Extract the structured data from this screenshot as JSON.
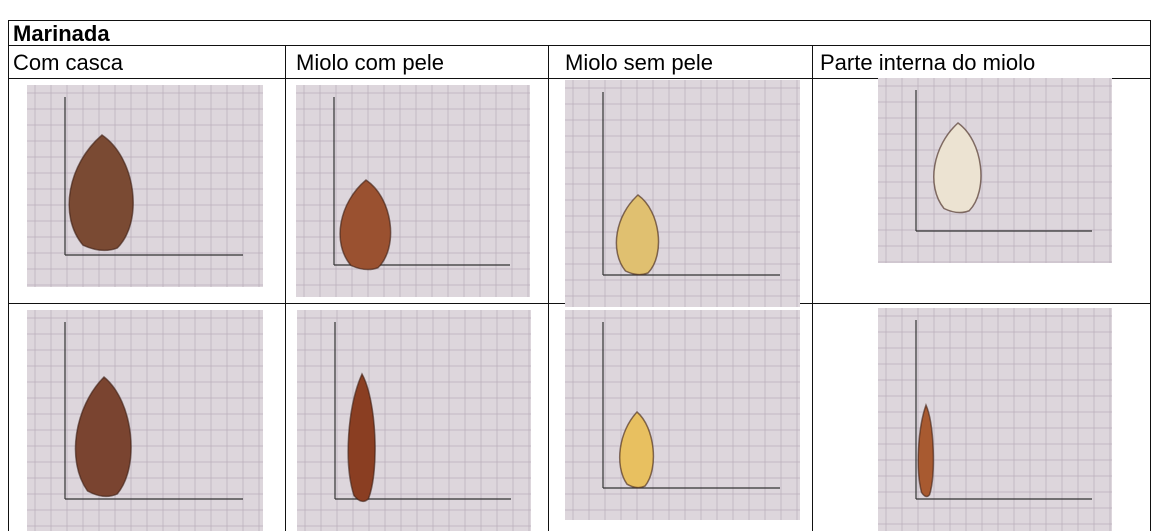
{
  "table": {
    "title": "Marinada",
    "headers": [
      "Com casca",
      "Miolo com pele",
      "Miolo sem pele",
      "Parte interna do miolo"
    ]
  }
}
